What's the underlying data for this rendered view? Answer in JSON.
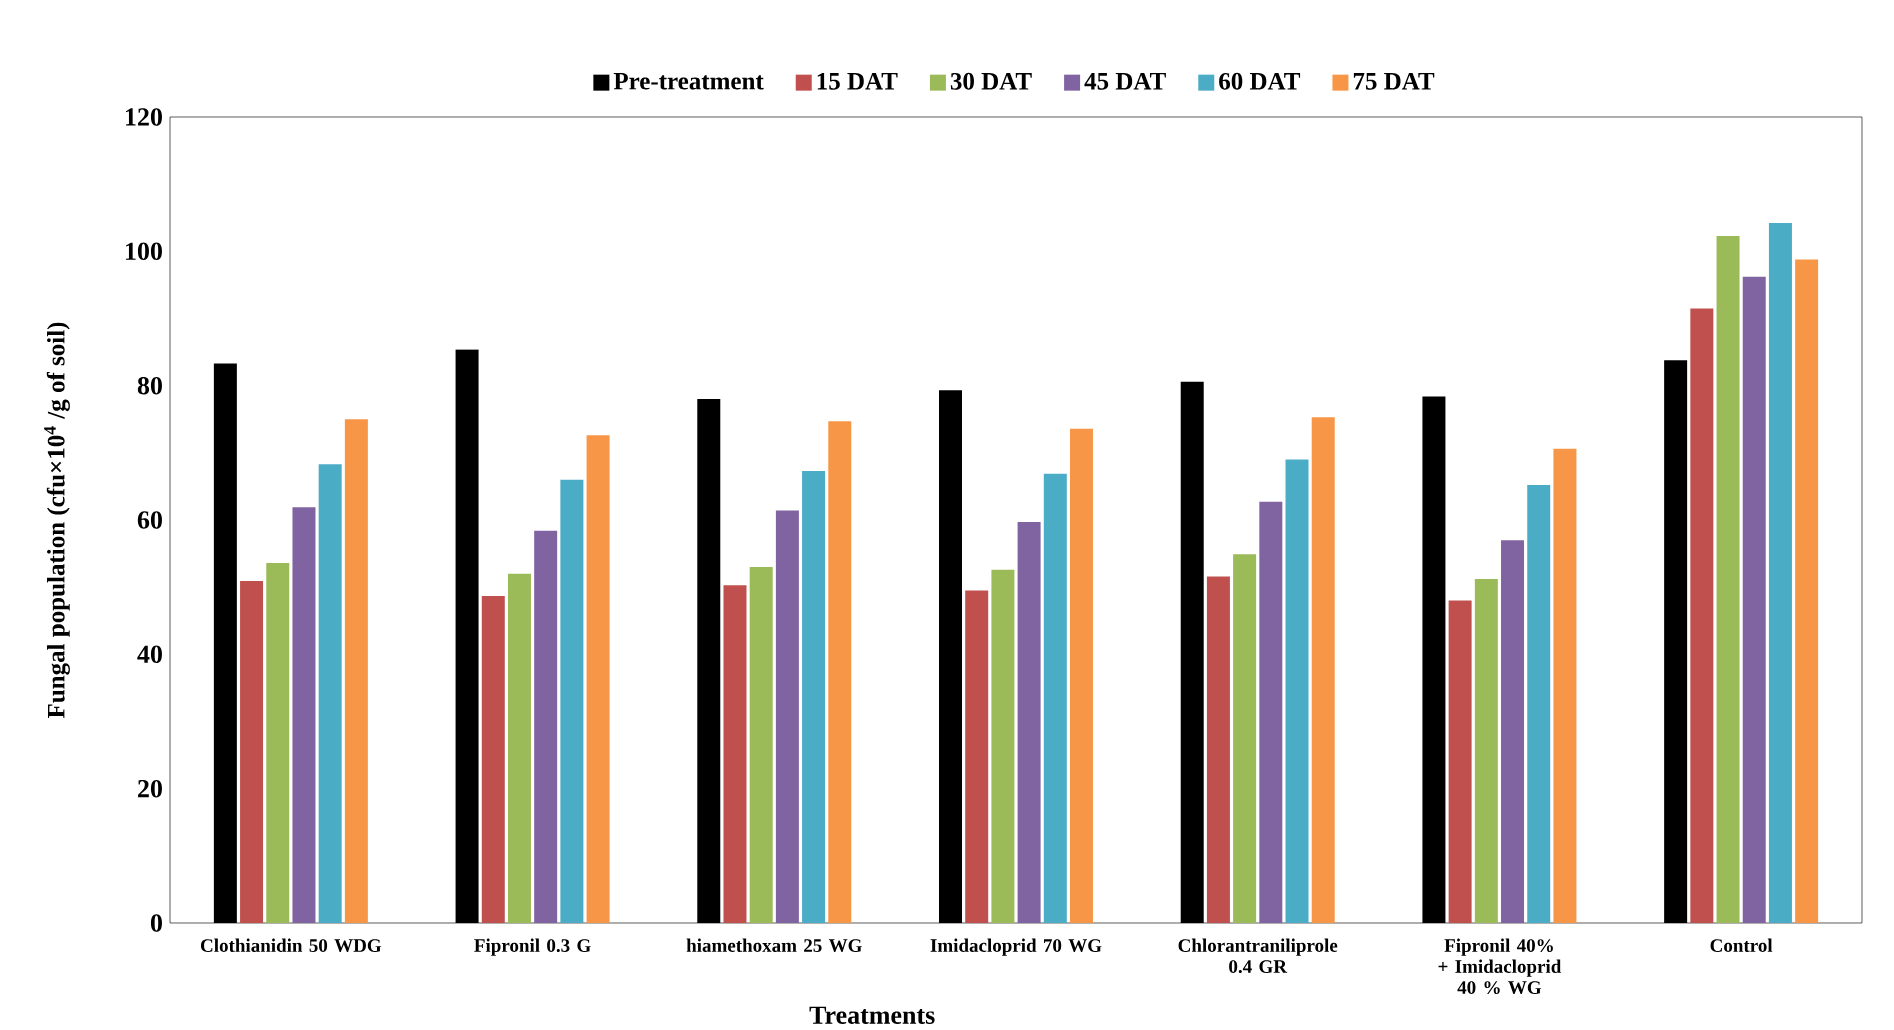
{
  "chart_data": {
    "type": "bar",
    "xlabel": "Treatments",
    "ylabel": "Fungal population (cfu×10$^{4}$ /g of soil)",
    "categories": [
      "Clothianidin 50 WDG",
      "Fipronil 0.3 G",
      "hiamethoxam 25 WG",
      "Imidacloprid 70 WG",
      "Chlorantraniliprole 0.4 GR",
      "Fipronil 40% + Imidacloprid 40 % WG",
      "Control"
    ],
    "series": [
      {
        "name": "Pre-treatment",
        "color": "#000000",
        "values": [
          83.3,
          85.4,
          78.0,
          79.3,
          80.6,
          78.4,
          83.8
        ]
      },
      {
        "name": "15 DAT",
        "color": "#c0504d",
        "values": [
          50.9,
          48.7,
          50.3,
          49.5,
          51.6,
          48.0,
          91.5
        ]
      },
      {
        "name": "30 DAT",
        "color": "#9bbb59",
        "values": [
          53.6,
          52.0,
          53.0,
          52.6,
          54.9,
          51.2,
          102.3
        ]
      },
      {
        "name": "45 DAT",
        "color": "#8064a2",
        "values": [
          61.9,
          58.4,
          61.4,
          59.7,
          62.7,
          57.0,
          96.2
        ]
      },
      {
        "name": "60 DAT",
        "color": "#4bacc6",
        "values": [
          68.3,
          66.0,
          67.3,
          66.9,
          69.0,
          65.2,
          104.2
        ]
      },
      {
        "name": "75 DAT",
        "color": "#f79646",
        "values": [
          75.0,
          72.6,
          74.7,
          73.6,
          75.3,
          70.6,
          98.8
        ]
      }
    ],
    "ylim": [
      0,
      120
    ],
    "yticks": [
      0,
      20,
      40,
      60,
      80,
      100,
      120
    ],
    "grid": false,
    "legend": "top"
  }
}
